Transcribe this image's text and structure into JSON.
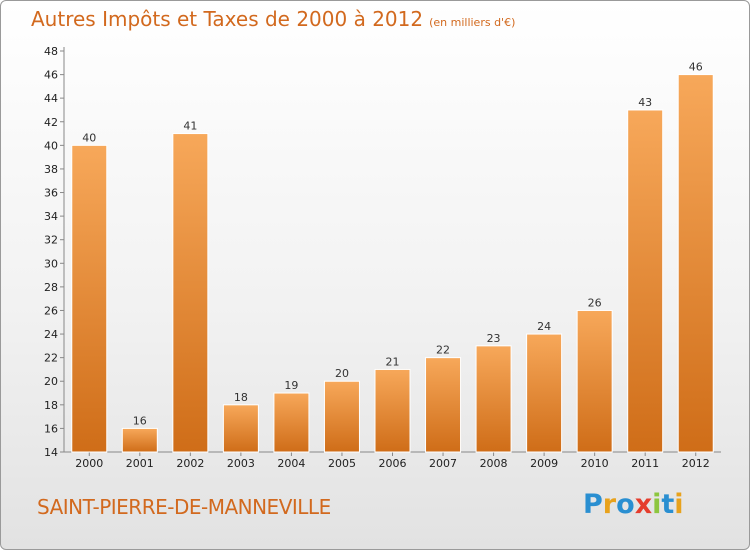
{
  "title": "Autres Impôts et Taxes de 2000 à 2012",
  "unit_note": "(en milliers d'€)",
  "commune": "SAINT-PIERRE-DE-MANNEVILLE",
  "logo": {
    "letters": [
      "P",
      "r",
      "o",
      "x",
      "i",
      "t",
      "i"
    ],
    "colors": [
      "#2a8fd1",
      "#e8a21c",
      "#2a8fd1",
      "#e53d2d",
      "#8dc63f",
      "#2a8fd1",
      "#e8a21c"
    ]
  },
  "colors": {
    "text": "#d2691e",
    "bar_light": "#f7a85a",
    "bar_dark": "#cf6d18"
  },
  "chart_data": {
    "type": "bar",
    "title": "Autres Impôts et Taxes de 2000 à 2012",
    "categories": [
      "2000",
      "2001",
      "2002",
      "2003",
      "2004",
      "2005",
      "2006",
      "2007",
      "2008",
      "2009",
      "2010",
      "2011",
      "2012"
    ],
    "values": [
      40,
      16,
      41,
      18,
      19,
      20,
      21,
      22,
      23,
      24,
      26,
      43,
      46
    ],
    "ylim": [
      14,
      48
    ],
    "yticks": [
      14,
      16,
      18,
      20,
      22,
      24,
      26,
      28,
      30,
      32,
      34,
      36,
      38,
      40,
      42,
      44,
      46,
      48
    ],
    "grid": false,
    "xlabel": "",
    "ylabel": ""
  }
}
